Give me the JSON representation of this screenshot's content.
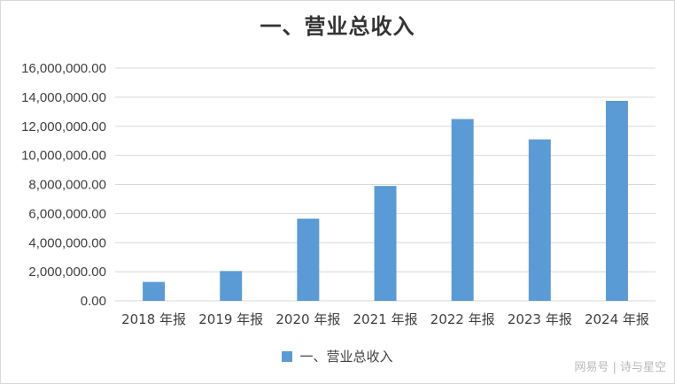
{
  "chart_data": {
    "type": "bar",
    "title": "一、营业总收入",
    "categories": [
      "2018 年报",
      "2019 年报",
      "2020 年报",
      "2021 年报",
      "2022 年报",
      "2023 年报",
      "2024 年报"
    ],
    "series": [
      {
        "name": "一、营业总收入",
        "values": [
          1300000,
          2050000,
          5650000,
          7900000,
          12500000,
          11100000,
          13750000
        ],
        "color": "#5b9bd5"
      }
    ],
    "yticks": [
      "0.00",
      "2,000,000.00",
      "4,000,000.00",
      "6,000,000.00",
      "8,000,000.00",
      "10,000,000.00",
      "12,000,000.00",
      "14,000,000.00",
      "16,000,000.00"
    ],
    "ylim": [
      0,
      16000000
    ],
    "grid": true,
    "legend": "bottom"
  },
  "watermark": "网易号 | 诗与星空"
}
